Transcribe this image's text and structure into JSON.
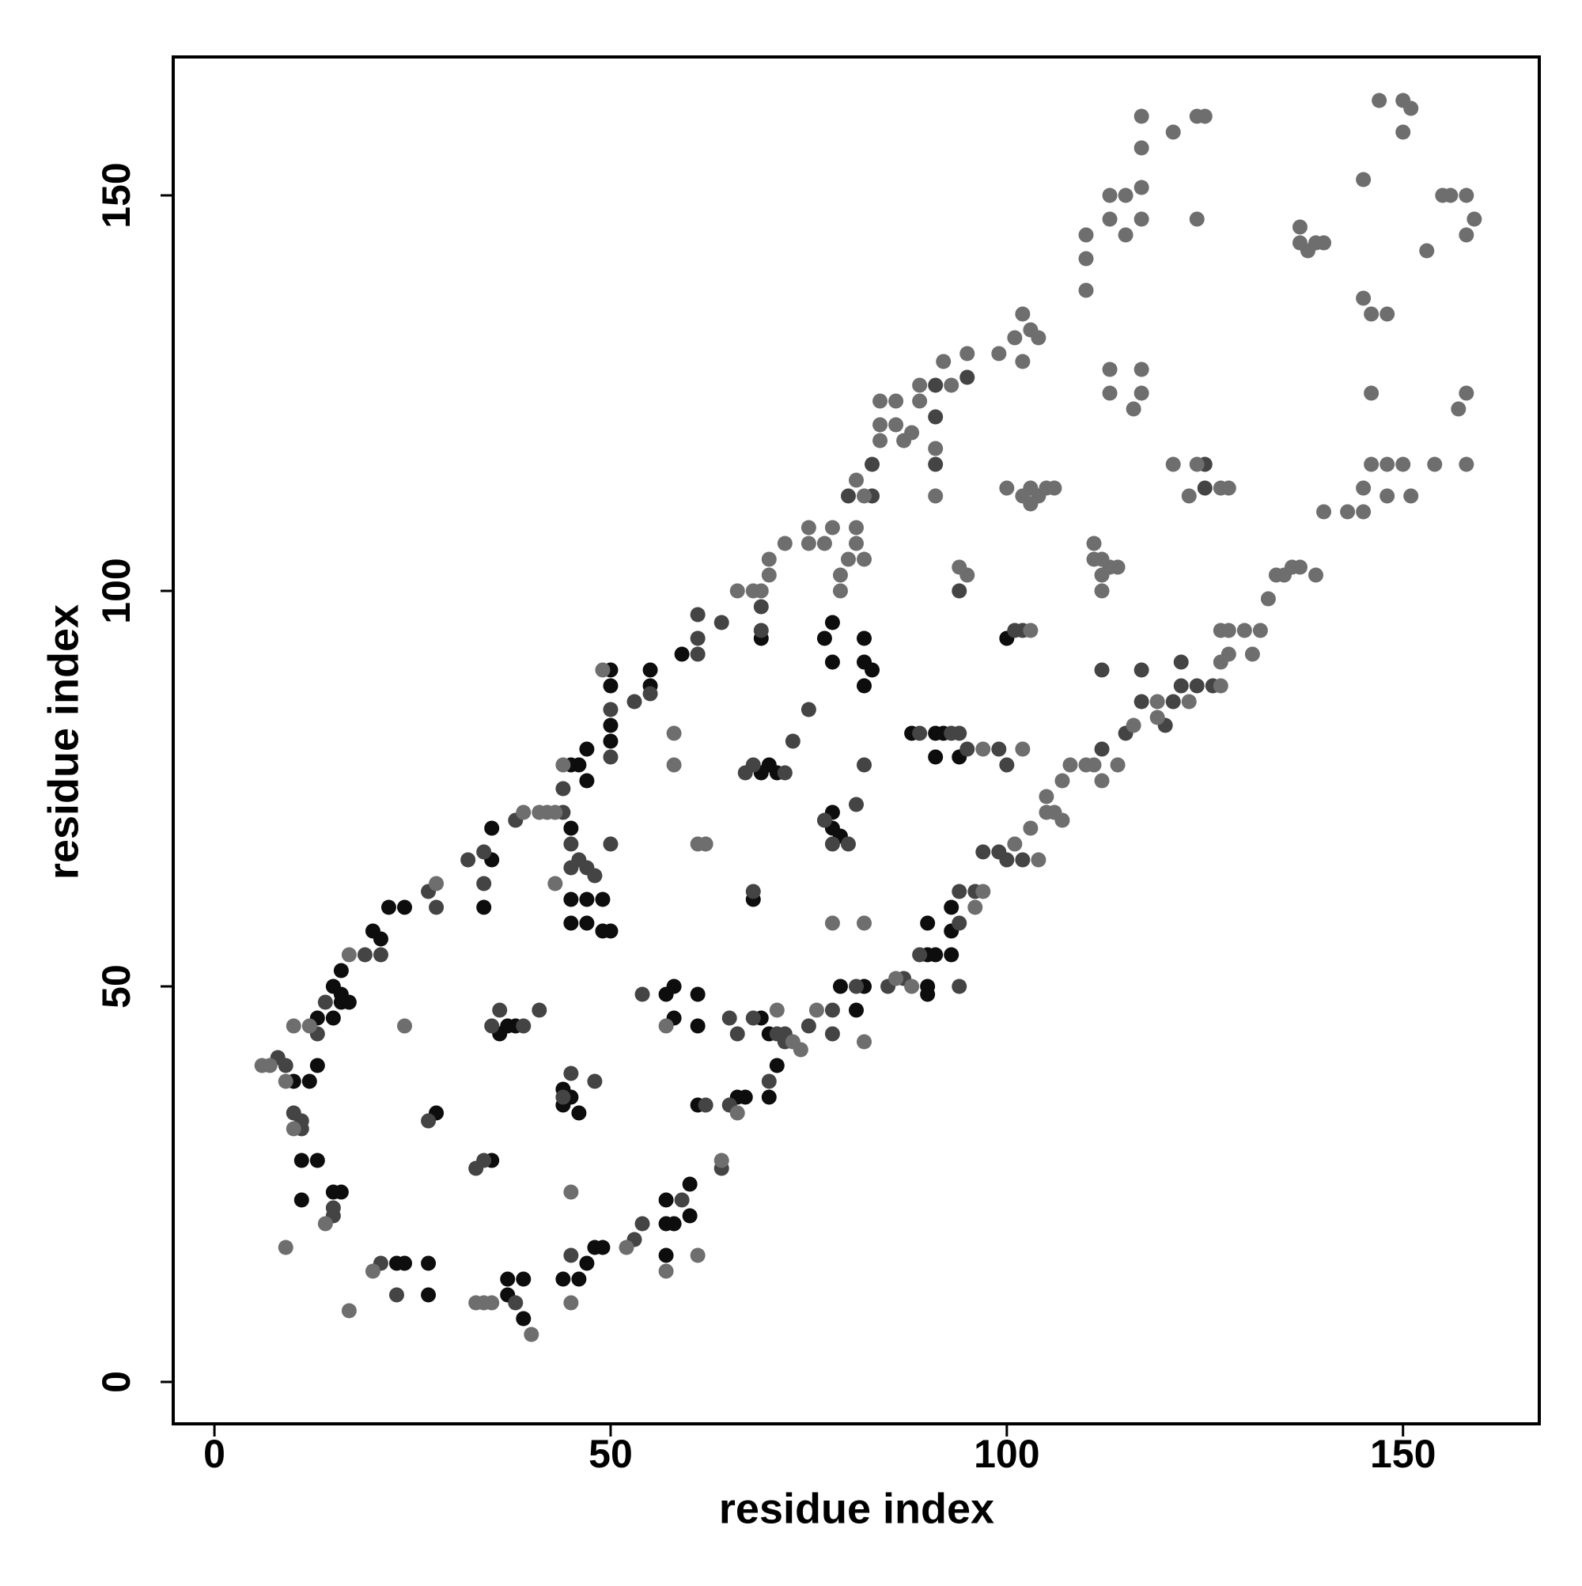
{
  "chart_data": {
    "type": "scatter",
    "xlabel": "residue index",
    "ylabel": "residue index",
    "xlim": [
      -5.2,
      167.2
    ],
    "ylim": [
      -5.3,
      167.5
    ],
    "xticks": [
      0,
      50,
      100,
      150
    ],
    "yticks": [
      0,
      50,
      100,
      150
    ],
    "series": [
      {
        "color": "#0d0d0d",
        "x": [
          39,
          37,
          39,
          37,
          27,
          27,
          24,
          23,
          47,
          48,
          49,
          46,
          44,
          57,
          58,
          57,
          60,
          60,
          57,
          11,
          13,
          11,
          15,
          16,
          10,
          12,
          13,
          13,
          15,
          16,
          16,
          17,
          15,
          16,
          21,
          22,
          24,
          20,
          34,
          35,
          35,
          28,
          35,
          36,
          37,
          38,
          44,
          45,
          46,
          44,
          45,
          47,
          45,
          49,
          49,
          50,
          47,
          45,
          47,
          46,
          45,
          47,
          50,
          50,
          50,
          50,
          55,
          55,
          59,
          57,
          58,
          58,
          61,
          61,
          69,
          70,
          68,
          69,
          70,
          71,
          69,
          77,
          78,
          78,
          82,
          82,
          83,
          78,
          78,
          79,
          79,
          82,
          81,
          90,
          90,
          90,
          91,
          90,
          93,
          93,
          93,
          91,
          92,
          91,
          94,
          100,
          61,
          66,
          67,
          70,
          71,
          82,
          88
        ],
        "y": [
          8,
          11,
          13,
          13,
          11,
          15,
          15,
          15,
          15,
          17,
          17,
          13,
          13,
          20,
          20,
          23,
          21,
          25,
          16,
          28,
          28,
          23,
          24,
          24,
          38,
          38,
          40,
          46,
          46,
          48,
          49,
          48,
          50,
          52,
          56,
          60,
          60,
          57,
          60,
          66,
          70,
          34,
          28,
          44,
          45,
          45,
          37,
          36,
          34,
          35,
          58,
          58,
          61,
          61,
          57,
          57,
          61,
          70,
          76,
          78,
          78,
          80,
          83,
          81,
          88,
          90,
          90,
          88,
          92,
          49,
          50,
          46,
          49,
          45,
          46,
          44,
          61,
          77,
          78,
          77,
          94,
          94,
          96,
          91,
          94,
          91,
          90,
          70,
          72,
          69,
          50,
          50,
          47,
          49,
          50,
          54,
          54,
          58,
          57,
          54,
          60,
          82,
          82,
          79,
          79,
          94,
          35,
          36,
          36,
          36,
          40,
          88,
          82
        ]
      },
      {
        "color": "#444444",
        "x": [
          23,
          21,
          38,
          45,
          53,
          54,
          59,
          64,
          62,
          65,
          70,
          72,
          71,
          72,
          75,
          78,
          81,
          85,
          87,
          89,
          94,
          94,
          96,
          97,
          99,
          100,
          94,
          9,
          8,
          10,
          11,
          11,
          15,
          15,
          13,
          14,
          19,
          21,
          27,
          28,
          34,
          34,
          32,
          38,
          44,
          45,
          44,
          50,
          50,
          53,
          55,
          61,
          61,
          61,
          64,
          69,
          69,
          33,
          34,
          27,
          35,
          36,
          39,
          41,
          44,
          45,
          48,
          46,
          47,
          45,
          50,
          48,
          54,
          65,
          66,
          68,
          68,
          67,
          68,
          72,
          73,
          75,
          77,
          78,
          80,
          81,
          82,
          89,
          93,
          95,
          94,
          101,
          102,
          94,
          83,
          83,
          80,
          91,
          91,
          91,
          95,
          102,
          112,
          115,
          117,
          120,
          121,
          122,
          124,
          126,
          122,
          117,
          112,
          125,
          125,
          99,
          100,
          78
        ],
        "y": [
          11,
          15,
          10,
          16,
          18,
          20,
          23,
          27,
          35,
          35,
          38,
          43,
          44,
          44,
          45,
          47,
          50,
          50,
          51,
          54,
          58,
          62,
          62,
          67,
          67,
          66,
          50,
          40,
          41,
          34,
          32,
          33,
          21,
          22,
          44,
          48,
          54,
          54,
          62,
          60,
          63,
          67,
          66,
          71,
          72,
          68,
          75,
          79,
          85,
          86,
          87,
          92,
          94,
          97,
          96,
          98,
          95,
          27,
          28,
          33,
          45,
          47,
          45,
          47,
          36,
          39,
          38,
          66,
          65,
          65,
          68,
          64,
          49,
          46,
          44,
          46,
          62,
          77,
          78,
          77,
          81,
          85,
          71,
          68,
          68,
          73,
          78,
          82,
          82,
          80,
          82,
          95,
          95,
          100,
          116,
          112,
          112,
          116,
          122,
          126,
          127,
          66,
          80,
          82,
          86,
          83,
          86,
          88,
          88,
          88,
          91,
          90,
          90,
          113,
          116,
          80,
          78,
          44
        ]
      },
      {
        "color": "#6e6e6e",
        "x": [
          40,
          34,
          33,
          35,
          17,
          20,
          45,
          52,
          61,
          57,
          64,
          66,
          73,
          74,
          76,
          86,
          88,
          101,
          103,
          105,
          106,
          105,
          107,
          108,
          110,
          114,
          116,
          119,
          119,
          123,
          127,
          127,
          128,
          131,
          132,
          133,
          134,
          135,
          136,
          137,
          139,
          127,
          128,
          130,
          140,
          143,
          145,
          145,
          148,
          151,
          146,
          148,
          150,
          154,
          158,
          157,
          158,
          146,
          124,
          127,
          128,
          121,
          147,
          150,
          151,
          150,
          145,
          145,
          146,
          148,
          155,
          156,
          158,
          159,
          158,
          153,
          137,
          138,
          139,
          140,
          137,
          124,
          125,
          121,
          124,
          117,
          117,
          117,
          117,
          115,
          113,
          113,
          115,
          110,
          110,
          110,
          101,
          102,
          103,
          104,
          102,
          99,
          95,
          92,
          93,
          89,
          89,
          86,
          84,
          84,
          84,
          86,
          87,
          88,
          91,
          91,
          81,
          82,
          81,
          81,
          82,
          80,
          79,
          79,
          78,
          77,
          75,
          75,
          72,
          70,
          70,
          69,
          68,
          66,
          49,
          44,
          43,
          42,
          41,
          39,
          28,
          17,
          12,
          10,
          7,
          6,
          9,
          10,
          14,
          9,
          24,
          45,
          43,
          57,
          58,
          58,
          61,
          62,
          71,
          78,
          82,
          97,
          102,
          103,
          95,
          94,
          100,
          102,
          103,
          104,
          105,
          106,
          103,
          111,
          112,
          112,
          113,
          114,
          111,
          112,
          113,
          113,
          117,
          117,
          116,
          123,
          104,
          107,
          111,
          112,
          82,
          96,
          97
        ],
        "y": [
          6,
          10,
          10,
          10,
          9,
          14,
          10,
          17,
          16,
          14,
          28,
          34,
          43,
          42,
          47,
          51,
          50,
          68,
          70,
          72,
          72,
          74,
          76,
          78,
          78,
          78,
          83,
          86,
          84,
          86,
          88,
          91,
          92,
          92,
          95,
          99,
          102,
          102,
          103,
          103,
          102,
          95,
          95,
          95,
          110,
          110,
          110,
          113,
          112,
          112,
          116,
          116,
          116,
          116,
          116,
          123,
          125,
          125,
          116,
          113,
          113,
          116,
          162,
          162,
          161,
          158,
          152,
          137,
          135,
          135,
          150,
          150,
          150,
          147,
          145,
          143,
          144,
          143,
          144,
          144,
          146,
          160,
          160,
          158,
          147,
          160,
          156,
          151,
          147,
          150,
          150,
          147,
          145,
          145,
          142,
          138,
          132,
          135,
          133,
          132,
          129,
          130,
          130,
          129,
          126,
          126,
          124,
          124,
          124,
          119,
          121,
          121,
          119,
          120,
          118,
          112,
          114,
          112,
          108,
          106,
          104,
          104,
          100,
          102,
          108,
          106,
          106,
          108,
          106,
          104,
          102,
          100,
          100,
          100,
          90,
          78,
          72,
          72,
          72,
          72,
          63,
          54,
          45,
          45,
          40,
          40,
          38,
          32,
          20,
          17,
          45,
          24,
          63,
          45,
          78,
          82,
          68,
          68,
          47,
          58,
          58,
          80,
          80,
          95,
          102,
          103,
          113,
          112,
          113,
          112,
          113,
          113,
          111,
          104,
          104,
          102,
          103,
          103,
          106,
          100,
          125,
          128,
          125,
          128,
          123,
          112,
          66,
          71,
          78,
          76,
          43,
          60,
          62
        ]
      }
    ]
  }
}
